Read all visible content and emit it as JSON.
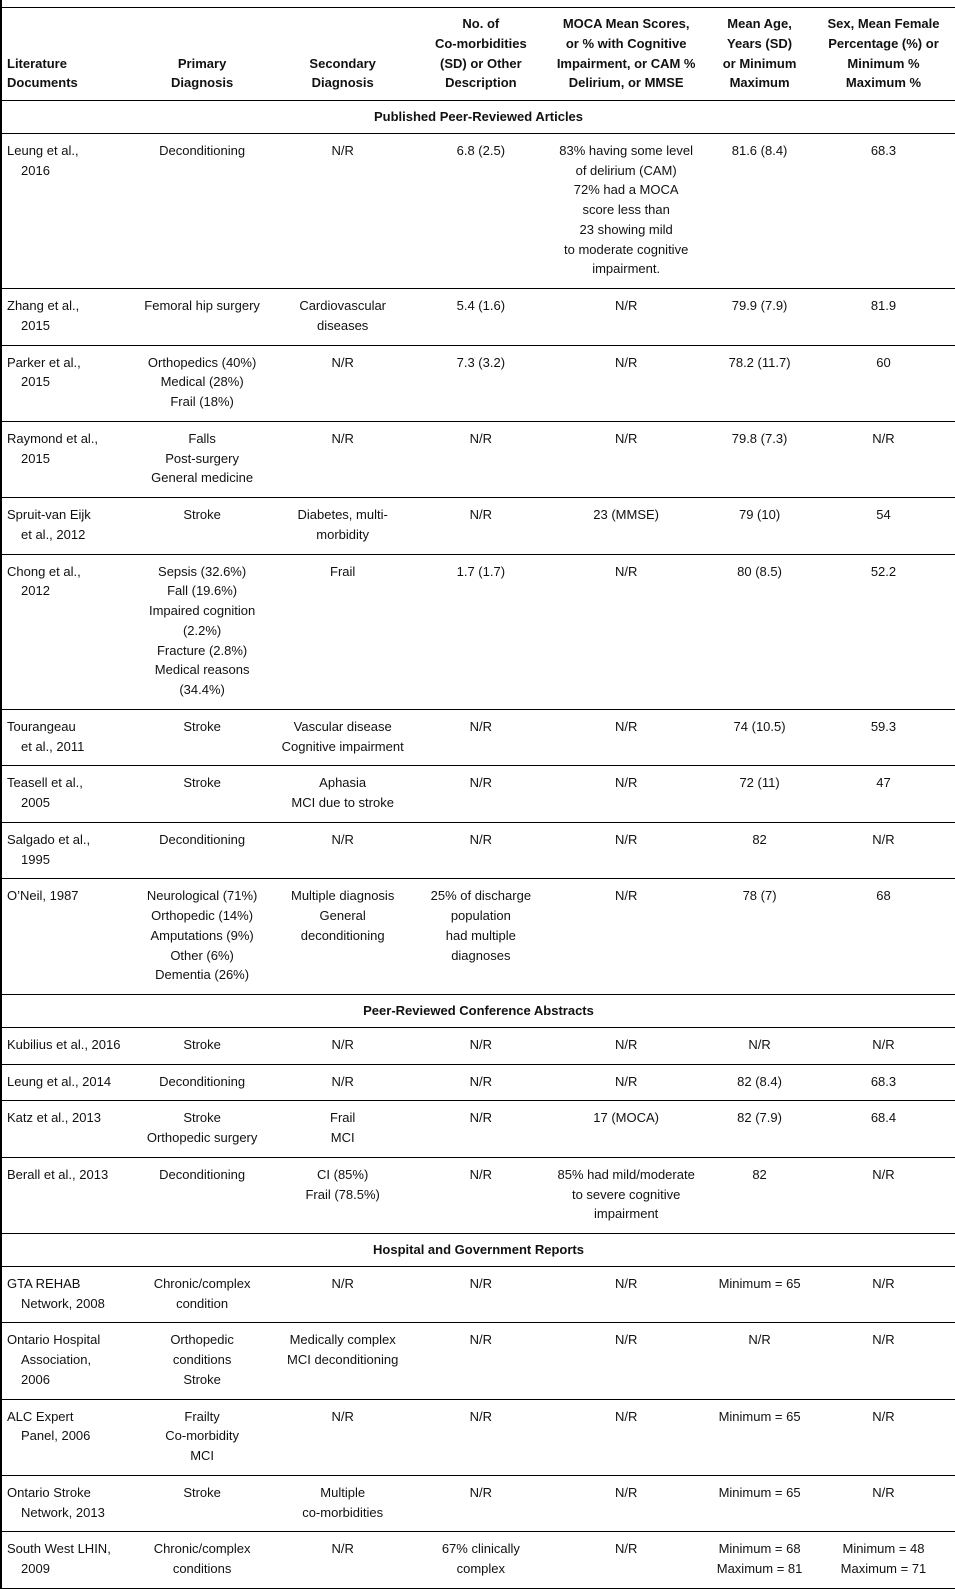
{
  "table": {
    "columns": [
      {
        "key": "literature",
        "label": "Literature\nDocuments"
      },
      {
        "key": "primary-diagnosis",
        "label": "Primary\nDiagnosis"
      },
      {
        "key": "secondary-diagnosis",
        "label": "Secondary\nDiagnosis"
      },
      {
        "key": "comorbidities",
        "label": "No. of\nCo-morbidities\n(SD) or Other\nDescription"
      },
      {
        "key": "moca",
        "label": "MOCA Mean Scores,\nor % with Cognitive\nImpairment, or CAM %\nDelirium, or MMSE"
      },
      {
        "key": "age",
        "label": "Mean Age,\nYears (SD)\nor Minimum\nMaximum"
      },
      {
        "key": "sex",
        "label": "Sex, Mean Female\nPercentage (%) or\nMinimum %\nMaximum %"
      }
    ],
    "sections": [
      {
        "title": "Published Peer-Reviewed Articles",
        "rows": [
          {
            "cells": [
              "Leung et al.,\n2016",
              "Deconditioning",
              "N/R",
              "6.8 (2.5)",
              "83% having some level\nof delirium (CAM)\n72% had a MOCA\nscore less than\n23 showing mild\nto moderate cognitive\nimpairment.",
              "81.6 (8.4)",
              "68.3"
            ]
          },
          {
            "cells": [
              "Zhang et al.,\n2015",
              "Femoral hip surgery",
              "Cardiovascular\ndiseases",
              "5.4 (1.6)",
              "N/R",
              "79.9 (7.9)",
              "81.9"
            ]
          },
          {
            "cells": [
              "Parker et al.,\n2015",
              "Orthopedics (40%)\nMedical (28%)\nFrail (18%)",
              "N/R",
              "7.3 (3.2)",
              "N/R",
              "78.2 (11.7)",
              "60"
            ]
          },
          {
            "cells": [
              "Raymond et al.,\n2015",
              "Falls\nPost-surgery\nGeneral medicine",
              "N/R",
              "N/R",
              "N/R",
              "79.8 (7.3)",
              "N/R"
            ]
          },
          {
            "cells": [
              "Spruit-van Eijk\net al., 2012",
              "Stroke",
              "Diabetes, multi-\nmorbidity",
              "N/R",
              "23 (MMSE)",
              "79 (10)",
              "54"
            ]
          },
          {
            "cells": [
              "Chong et al.,\n2012",
              "Sepsis (32.6%)\nFall (19.6%)\nImpaired cognition\n(2.2%)\nFracture (2.8%)\nMedical reasons\n(34.4%)",
              "Frail",
              "1.7 (1.7)",
              "N/R",
              "80 (8.5)",
              "52.2"
            ]
          },
          {
            "cells": [
              "Tourangeau\net al., 2011",
              "Stroke",
              "Vascular disease\nCognitive impairment",
              "N/R",
              "N/R",
              "74 (10.5)",
              "59.3"
            ]
          },
          {
            "cells": [
              "Teasell et al.,\n2005",
              "Stroke",
              "Aphasia\nMCI due to stroke",
              "N/R",
              "N/R",
              "72 (11)",
              "47"
            ]
          },
          {
            "cells": [
              "Salgado et al.,\n1995",
              "Deconditioning",
              "N/R",
              "N/R",
              "N/R",
              "82",
              "N/R"
            ]
          },
          {
            "cells": [
              "O’Neil, 1987",
              "Neurological (71%)\nOrthopedic (14%)\nAmputations (9%)\nOther (6%)\nDementia (26%)",
              "Multiple diagnosis\nGeneral\ndeconditioning",
              "25% of discharge\npopulation\nhad multiple\ndiagnoses",
              "N/R",
              "78 (7)",
              "68"
            ]
          }
        ]
      },
      {
        "title": "Peer-Reviewed Conference Abstracts",
        "rows": [
          {
            "cells": [
              "Kubilius et al., 2016",
              "Stroke",
              "N/R",
              "N/R",
              "N/R",
              "N/R",
              "N/R"
            ]
          },
          {
            "cells": [
              "Leung et al., 2014",
              "Deconditioning",
              "N/R",
              "N/R",
              "N/R",
              "82 (8.4)",
              "68.3"
            ]
          },
          {
            "cells": [
              "Katz et al., 2013",
              "Stroke\nOrthopedic surgery",
              "Frail\nMCI",
              "N/R",
              "17 (MOCA)",
              "82 (7.9)",
              "68.4"
            ]
          },
          {
            "cells": [
              "Berall et al., 2013",
              "Deconditioning",
              "CI (85%)\nFrail (78.5%)",
              "N/R",
              "85% had mild/moderate\nto severe cognitive\nimpairment",
              "82",
              "N/R"
            ]
          }
        ]
      },
      {
        "title": "Hospital and Government Reports",
        "rows": [
          {
            "cells": [
              "GTA REHAB\nNetwork, 2008",
              "Chronic/complex\ncondition",
              "N/R",
              "N/R",
              "N/R",
              "Minimum = 65",
              "N/R"
            ]
          },
          {
            "cells": [
              "Ontario Hospital\nAssociation,\n2006",
              "Orthopedic\nconditions\nStroke",
              "Medically complex\nMCI deconditioning",
              "N/R",
              "N/R",
              "N/R",
              "N/R"
            ]
          },
          {
            "cells": [
              "ALC Expert\nPanel, 2006",
              "Frailty\nCo-morbidity\nMCI",
              "N/R",
              "N/R",
              "N/R",
              "Minimum = 65",
              "N/R"
            ]
          },
          {
            "cells": [
              "Ontario Stroke\nNetwork, 2013",
              "Stroke",
              "Multiple\nco-morbidities",
              "N/R",
              "N/R",
              "Minimum = 65",
              "N/R"
            ]
          },
          {
            "cells": [
              "South West LHIN,\n2009",
              "Chronic/complex\nconditions",
              "N/R",
              "67% clinically\ncomplex",
              "N/R",
              "Minimum = 68\nMaximum = 81",
              "Minimum = 48\nMaximum = 71"
            ]
          }
        ]
      }
    ]
  }
}
